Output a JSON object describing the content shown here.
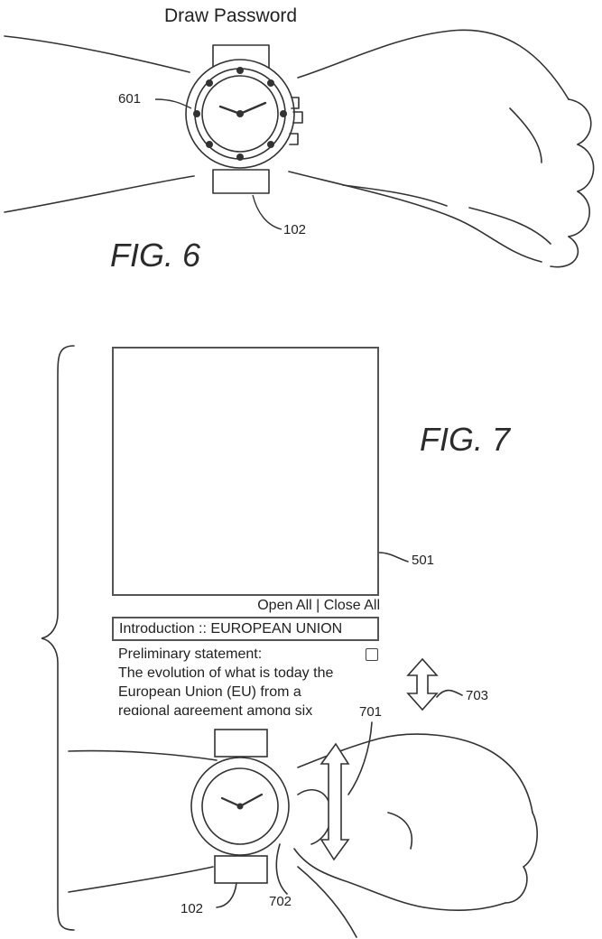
{
  "fig6": {
    "title": "Draw Password",
    "figure_label": "FIG. 6",
    "ref_watch_face": "601",
    "ref_wrist_device": "102"
  },
  "fig7": {
    "figure_label": "FIG. 7",
    "ref_display": "501",
    "ref_scroll_arrow": "703",
    "ref_finger_motion": "701",
    "ref_bezel": "702",
    "ref_wrist_device": "102",
    "screen": {
      "open_close": "Open All | Close All",
      "header": "Introduction :: EUROPEAN UNION",
      "preliminary": "Preliminary statement:",
      "lines": [
        "The evolution of what is today the",
        "European Union (EU) from a",
        "regional agreement among six"
      ]
    }
  }
}
